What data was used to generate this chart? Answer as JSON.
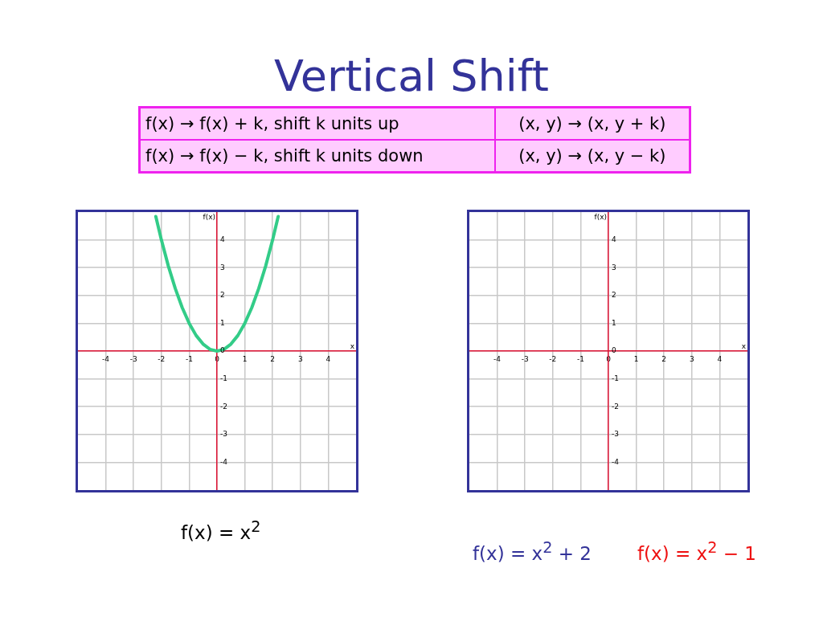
{
  "chart_data": [
    {
      "type": "line",
      "title": "Vertical Shift",
      "xlabel": "x",
      "ylabel": "f(x)",
      "xlim": [
        -5,
        5
      ],
      "ylim": [
        -5,
        5
      ],
      "xticks": [
        -4,
        -3,
        -2,
        -1,
        0,
        1,
        2,
        3,
        4
      ],
      "yticks": [
        -4,
        -3,
        -2,
        -1,
        0,
        1,
        2,
        3,
        4
      ],
      "grid": true,
      "marker": "none",
      "line_style": "solid",
      "series": [
        {
          "color": "#33cc88",
          "x": [
            -2.2,
            -2,
            -1.75,
            -1.5,
            -1.25,
            -1,
            -0.75,
            -0.5,
            -0.25,
            0,
            0.25,
            0.5,
            0.75,
            1,
            1.25,
            1.5,
            1.75,
            2,
            2.2
          ],
          "values": [
            4.84,
            4,
            3.06,
            2.25,
            1.56,
            1,
            0.56,
            0.25,
            0.06,
            0,
            0.06,
            0.25,
            0.56,
            1,
            1.56,
            2.25,
            3.06,
            4,
            4.84
          ]
        }
      ],
      "annotations": [
        "f(x) → f(x) + k, shift k units up",
        "(x, y) → (x, y + k)",
        "f(x) → f(x) − k, shift k units down",
        "(x, y) → (x, y − k)",
        "f(x) = x$^{2}$"
      ]
    },
    {
      "type": "line",
      "xlabel": "x",
      "ylabel": "f(x)",
      "xlim": [
        -5,
        5
      ],
      "ylim": [
        -5,
        5
      ],
      "xticks": [
        -4,
        -3,
        -2,
        -1,
        0,
        1,
        2,
        3,
        4
      ],
      "yticks": [
        -4,
        -3,
        -2,
        -1,
        0,
        1,
        2,
        3,
        4
      ],
      "grid": true,
      "annotations": [
        "f(x) = x$^{2}$ + 2",
        "f(x) = x$^{2}$ − 1"
      ]
    }
  ]
}
